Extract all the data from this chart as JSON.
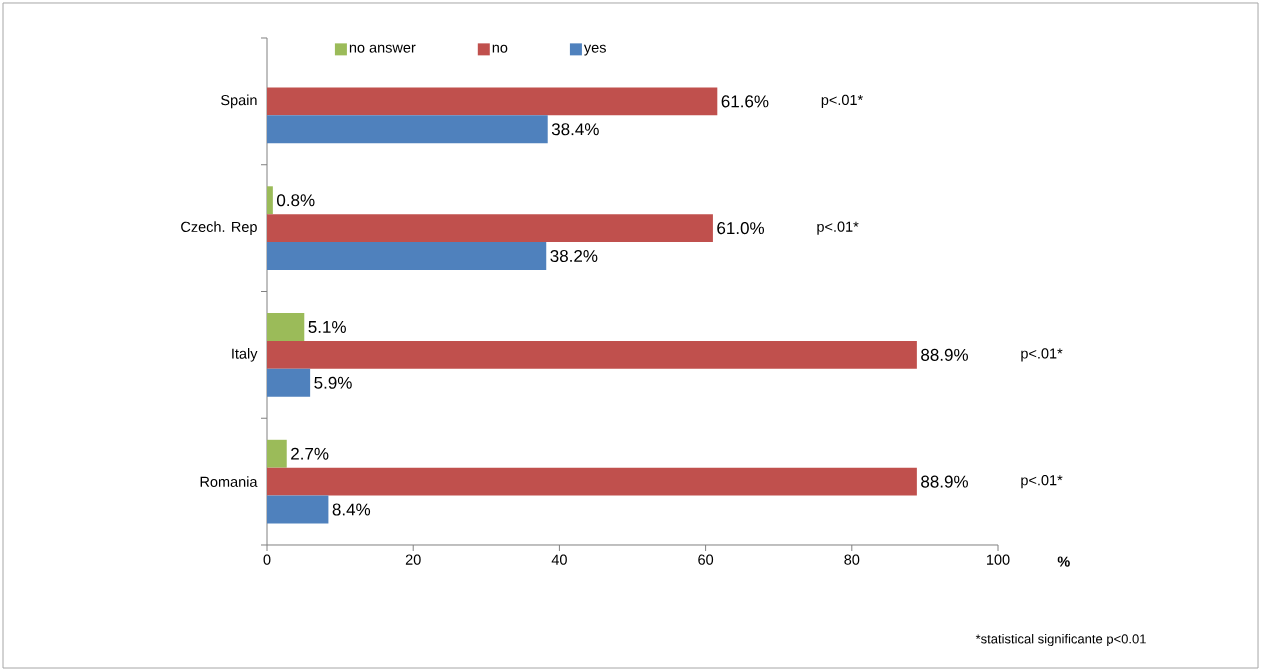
{
  "chart_data": {
    "type": "bar",
    "orientation": "horizontal",
    "categories": [
      "Spain",
      "Czech. Rep",
      "Italy",
      "Romania"
    ],
    "series": [
      {
        "name": "no answer",
        "color": "#9bbb59",
        "values": [
          null,
          0.8,
          5.1,
          2.7
        ],
        "value_labels": [
          null,
          "0.8%",
          "5.1%",
          "2.7%"
        ]
      },
      {
        "name": "no",
        "color": "#c0504d",
        "values": [
          61.6,
          61.0,
          88.9,
          88.9
        ],
        "value_labels": [
          "61.6%",
          "61.0%",
          "88.9%",
          "88.9%"
        ]
      },
      {
        "name": "yes",
        "color": "#4f81bd",
        "values": [
          38.4,
          38.2,
          5.9,
          8.4
        ],
        "value_labels": [
          "38.4%",
          "38.2%",
          "5.9%",
          "8.4%"
        ]
      }
    ],
    "xlim": [
      0,
      100
    ],
    "xticks": [
      0,
      20,
      40,
      60,
      80,
      100
    ],
    "xlabel": "%",
    "legend": "top",
    "grid": false,
    "annotations": [
      "p<.01*",
      "p<.01*",
      "p<.01*",
      "p<.01*",
      "*statistical significante p<0.01"
    ]
  }
}
